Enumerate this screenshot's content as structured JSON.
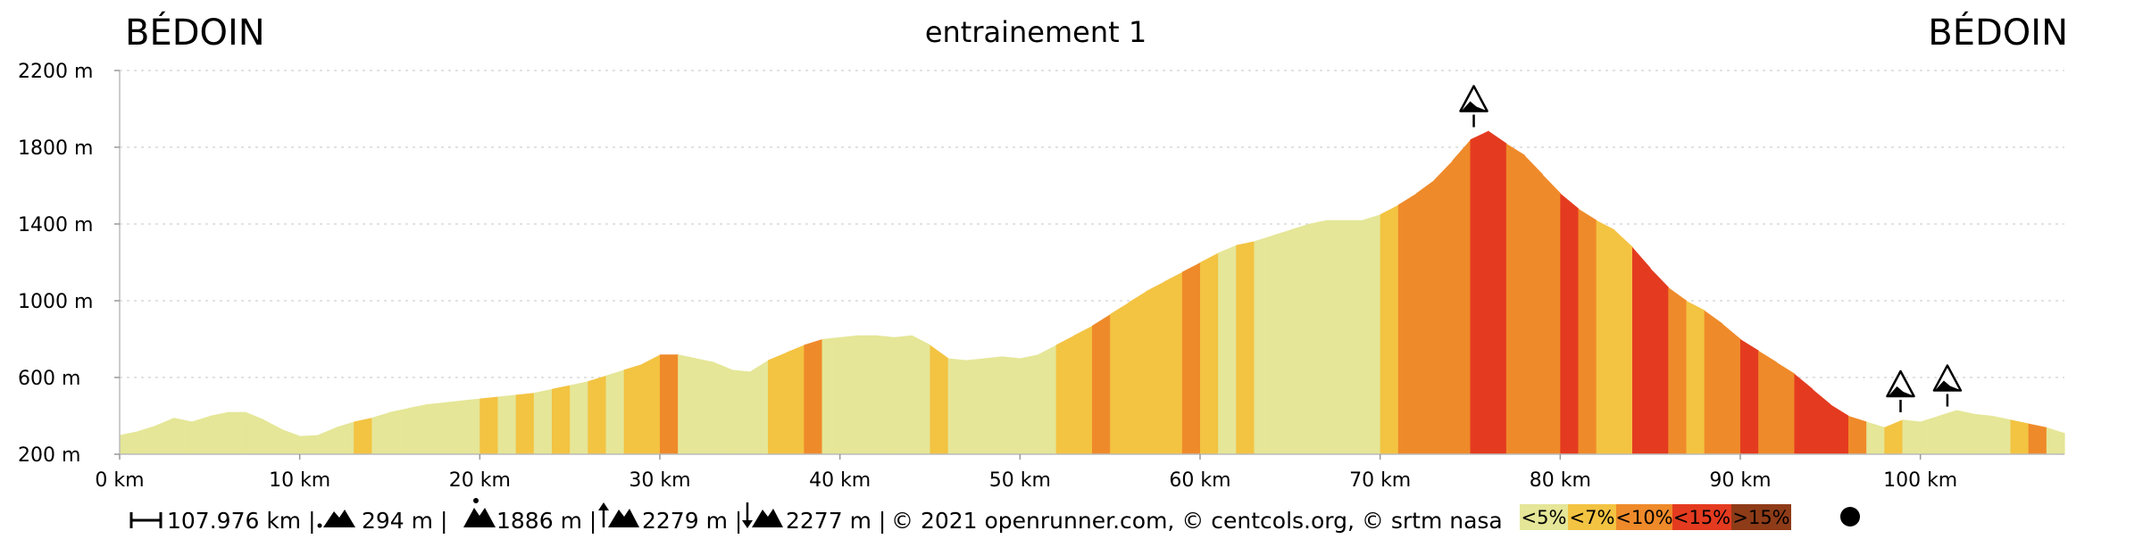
{
  "titles": {
    "left": "BÉDOIN",
    "center": "entrainement 1",
    "right": "BÉDOIN"
  },
  "footer": {
    "distance": "107.976 km |",
    "min_alt": "294 m |",
    "max_alt": "1886 m |",
    "ascent": "2279 m |",
    "descent": "2277 m |",
    "copyright": "© 2021 openrunner.com, © centcols.org, © srtm nasa"
  },
  "legend": [
    {
      "label": "<5%",
      "color": "#e5e697"
    },
    {
      "label": "<7%",
      "color": "#f3c342"
    },
    {
      "label": "<10%",
      "color": "#ef8a2a"
    },
    {
      "label": "<15%",
      "color": "#e43b20"
    },
    {
      "label": ">15%",
      "color": "#8e3b18"
    }
  ],
  "chart_data": {
    "type": "area",
    "xlabel": "",
    "ylabel": "",
    "xlim": [
      0,
      108
    ],
    "ylim": [
      200,
      2200
    ],
    "x_ticks": [
      0,
      10,
      20,
      30,
      40,
      50,
      60,
      70,
      80,
      90,
      100
    ],
    "x_tick_labels": [
      "0 km",
      "10 km",
      "20 km",
      "30 km",
      "40 km",
      "50 km",
      "60 km",
      "70 km",
      "80 km",
      "90 km",
      "100 km"
    ],
    "y_ticks": [
      200,
      600,
      1000,
      1400,
      1800,
      2200
    ],
    "y_tick_labels": [
      "200 m",
      "600 m",
      "1000 m",
      "1400 m",
      "1800 m",
      "2200 m"
    ],
    "grid": "horizontal dotted",
    "profile": {
      "x": [
        0,
        1,
        2,
        3,
        4,
        5,
        6,
        7,
        8,
        9,
        10,
        11,
        12,
        13,
        14,
        15,
        16,
        17,
        18,
        19,
        20,
        21,
        22,
        23,
        24,
        25,
        26,
        27,
        28,
        29,
        30,
        31,
        32,
        33,
        34,
        35,
        36,
        37,
        38,
        39,
        40,
        41,
        42,
        43,
        44,
        45,
        46,
        47,
        48,
        49,
        50,
        51,
        52,
        53,
        54,
        55,
        56,
        57,
        58,
        59,
        60,
        61,
        62,
        63,
        64,
        65,
        66,
        67,
        68,
        69,
        70,
        71,
        72,
        73,
        74,
        75,
        76,
        77,
        78,
        79,
        80,
        81,
        82,
        83,
        84,
        85,
        86,
        87,
        88,
        89,
        90,
        91,
        92,
        93,
        94,
        95,
        96,
        97,
        98,
        99,
        100,
        101,
        102,
        103,
        104,
        105,
        106,
        107,
        108
      ],
      "elevation": [
        300,
        320,
        350,
        390,
        370,
        400,
        420,
        420,
        380,
        330,
        295,
        300,
        340,
        370,
        390,
        420,
        440,
        460,
        470,
        480,
        490,
        500,
        510,
        520,
        540,
        560,
        580,
        610,
        640,
        670,
        720,
        720,
        700,
        680,
        640,
        630,
        690,
        730,
        770,
        800,
        810,
        820,
        820,
        810,
        820,
        770,
        700,
        690,
        700,
        710,
        700,
        720,
        770,
        820,
        870,
        930,
        990,
        1050,
        1100,
        1150,
        1200,
        1250,
        1290,
        1310,
        1340,
        1370,
        1400,
        1420,
        1420,
        1420,
        1450,
        1500,
        1560,
        1630,
        1730,
        1840,
        1886,
        1820,
        1760,
        1660,
        1560,
        1480,
        1420,
        1370,
        1280,
        1170,
        1070,
        1000,
        950,
        880,
        800,
        740,
        680,
        620,
        540,
        460,
        400,
        370,
        340,
        380,
        370,
        400,
        430,
        410,
        400,
        380,
        360,
        340,
        310
      ],
      "gradient_class": [
        "<5%",
        "<5%",
        "<5%",
        "<5%",
        "<5%",
        "<5%",
        "<5%",
        "<5%",
        "<5%",
        "<5%",
        "<5%",
        "<5%",
        "<5%",
        "<7%",
        "<5%",
        "<5%",
        "<5%",
        "<5%",
        "<5%",
        "<5%",
        "<7%",
        "<5%",
        "<7%",
        "<5%",
        "<7%",
        "<5%",
        "<7%",
        "<5%",
        "<7%",
        "<7%",
        "<10%",
        "<5%",
        "<5%",
        "<5%",
        "<5%",
        "<5%",
        "<7%",
        "<7%",
        "<10%",
        "<5%",
        "<5%",
        "<5%",
        "<5%",
        "<5%",
        "<5%",
        "<7%",
        "<5%",
        "<5%",
        "<5%",
        "<5%",
        "<5%",
        "<5%",
        "<7%",
        "<7%",
        "<10%",
        "<7%",
        "<7%",
        "<7%",
        "<7%",
        "<10%",
        "<7%",
        "<5%",
        "<7%",
        "<5%",
        "<5%",
        "<5%",
        "<5%",
        "<5%",
        "<5%",
        "<5%",
        "<7%",
        "<10%",
        "<10%",
        "<10%",
        "<10%",
        "<15%",
        "<15%",
        "<10%",
        "<10%",
        "<10%",
        "<15%",
        "<10%",
        "<7%",
        "<7%",
        "<15%",
        "<15%",
        "<10%",
        "<7%",
        "<10%",
        "<10%",
        "<15%",
        "<10%",
        "<10%",
        "<15%",
        "<15%",
        "<15%",
        "<10%",
        "<5%",
        "<7%",
        "<5%",
        "<5%",
        "<5%",
        "<5%",
        "<5%",
        "<5%",
        "<7%",
        "<10%",
        "<5%",
        "<10%"
      ]
    },
    "markers": [
      {
        "x": 75.2,
        "elevation": 1886
      },
      {
        "x": 98.9,
        "elevation": 400
      },
      {
        "x": 101.5,
        "elevation": 430
      }
    ]
  }
}
